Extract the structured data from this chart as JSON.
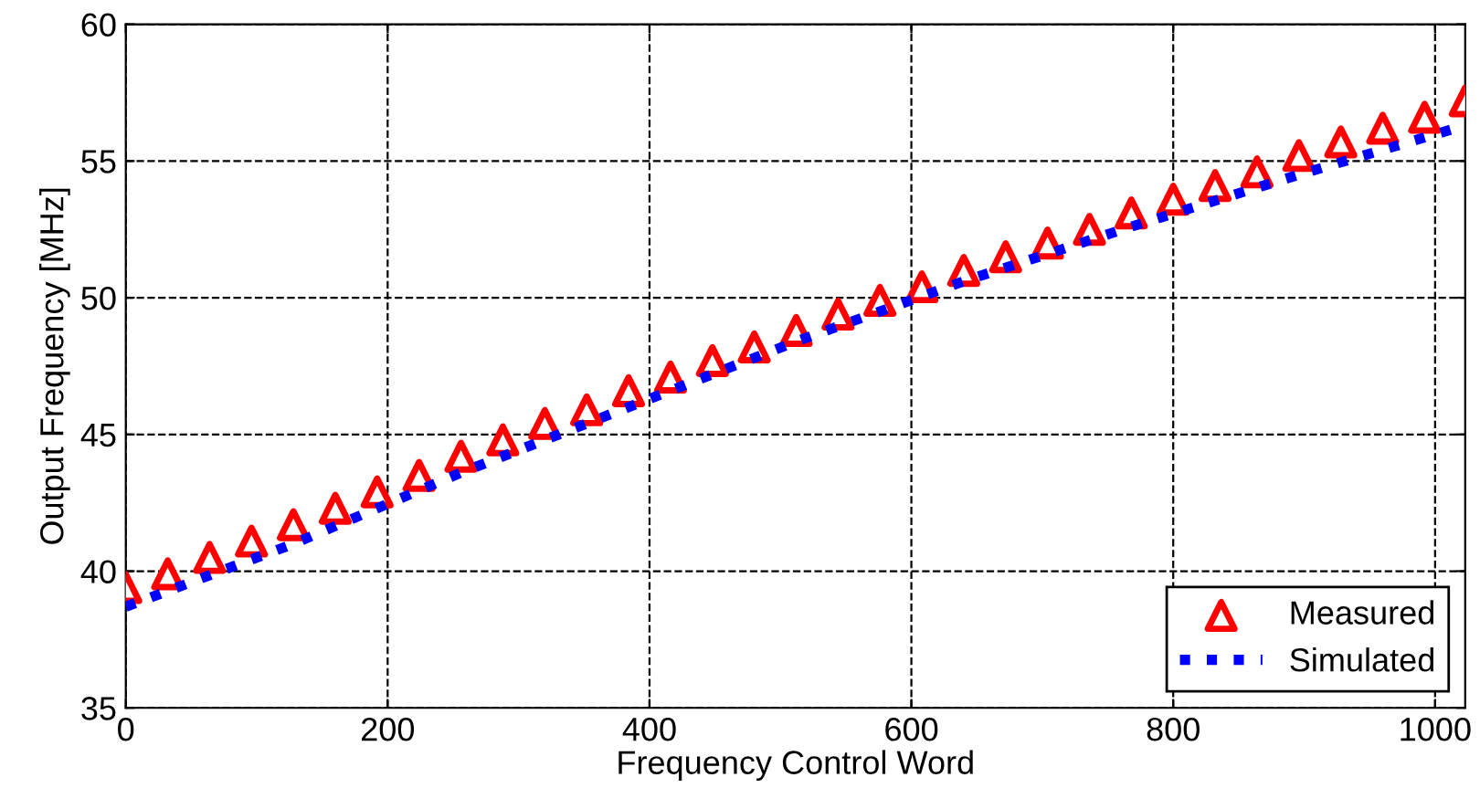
{
  "chart_data": {
    "type": "line",
    "xlabel": "Frequency Control Word",
    "ylabel": "Output Frequency [MHz]",
    "xlim": [
      0,
      1023
    ],
    "ylim": [
      35,
      60
    ],
    "xticks": [
      0,
      200,
      400,
      600,
      800,
      1000
    ],
    "yticks": [
      35,
      40,
      45,
      50,
      55,
      60
    ],
    "grid": true,
    "legend": "bottom right",
    "series": [
      {
        "name": "Measured",
        "color": "#ff0000",
        "type": "scatter",
        "marker": "triangle",
        "x": [
          0,
          32,
          64,
          96,
          128,
          160,
          192,
          224,
          256,
          288,
          320,
          352,
          384,
          416,
          448,
          480,
          512,
          544,
          576,
          608,
          640,
          672,
          704,
          736,
          768,
          800,
          832,
          864,
          896,
          928,
          960,
          992,
          1023
        ],
        "values": [
          39.4,
          39.9,
          40.5,
          41.1,
          41.7,
          42.3,
          42.9,
          43.5,
          44.2,
          44.8,
          45.4,
          45.9,
          46.6,
          47.1,
          47.7,
          48.2,
          48.8,
          49.4,
          49.9,
          50.4,
          51.0,
          51.5,
          52.0,
          52.5,
          53.1,
          53.6,
          54.1,
          54.6,
          55.2,
          55.7,
          56.2,
          56.6,
          57.2
        ]
      },
      {
        "name": "Simulated",
        "color": "#0000ff",
        "line_style": "dotted",
        "x": [
          0,
          128,
          256,
          384,
          512,
          640,
          768,
          896,
          1023
        ],
        "values": [
          38.7,
          41.0,
          43.6,
          46.0,
          48.4,
          50.6,
          52.6,
          54.5,
          56.3
        ]
      }
    ]
  }
}
